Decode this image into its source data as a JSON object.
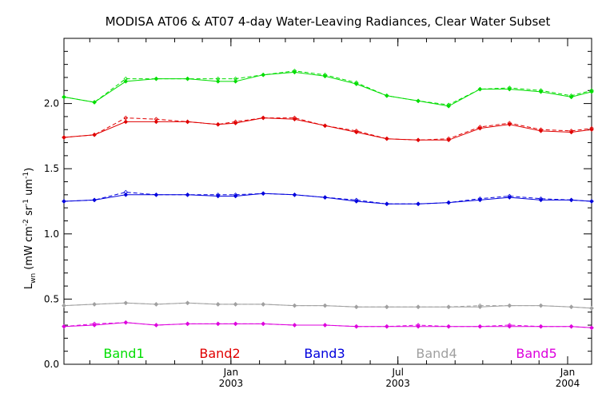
{
  "chart_data": {
    "type": "line",
    "title": "MODISA AT06 & AT07 4-day Water-Leaving Radiances, Clear Water Subset",
    "ylabel": {
      "main": "L",
      "sub": "wn",
      "units_prefix": " (mW cm",
      "exp1": "-2",
      "units_mid": " sr",
      "exp2": "-1",
      "units_mid2": " um",
      "exp3": "-1",
      "units_suffix": ")"
    },
    "ylim": [
      0.0,
      2.5
    ],
    "xlim": [
      "2002-07-04",
      "2004-01-27"
    ],
    "y_ticks": [
      "0.0",
      "0.5",
      "1.0",
      "1.5",
      "2.0"
    ],
    "y_tick_values": [
      0.0,
      0.5,
      1.0,
      1.5,
      2.0
    ],
    "x_ticks": [
      {
        "date": "2003-01-01",
        "month": "Jan",
        "year": "2003"
      },
      {
        "date": "2003-07-01",
        "month": "Jul",
        "year": "2003"
      },
      {
        "date": "2004-01-01",
        "month": "Jan",
        "year": "2004"
      }
    ],
    "grid": false,
    "legend_position": "bottom",
    "x": [
      "2002-07-04",
      "2002-08-06",
      "2002-09-09",
      "2002-10-12",
      "2002-11-15",
      "2002-12-18",
      "2003-01-06",
      "2003-02-05",
      "2003-03-11",
      "2003-04-13",
      "2003-05-17",
      "2003-06-19",
      "2003-07-23",
      "2003-08-25",
      "2003-09-28",
      "2003-10-30",
      "2003-12-03",
      "2004-01-05",
      "2004-01-27"
    ],
    "series": [
      {
        "name": "Band1",
        "color": "#00dd00",
        "solid": [
          2.05,
          2.01,
          2.17,
          2.19,
          2.19,
          2.17,
          2.17,
          2.22,
          2.24,
          2.21,
          2.15,
          2.06,
          2.02,
          1.98,
          2.11,
          2.11,
          2.09,
          2.05,
          2.09
        ],
        "dashed": [
          2.05,
          2.01,
          2.19,
          2.19,
          2.19,
          2.19,
          2.19,
          2.22,
          2.25,
          2.22,
          2.16,
          2.06,
          2.02,
          1.99,
          2.11,
          2.12,
          2.1,
          2.06,
          2.1
        ]
      },
      {
        "name": "Band2",
        "color": "#e00000",
        "solid": [
          1.74,
          1.76,
          1.86,
          1.86,
          1.86,
          1.84,
          1.85,
          1.89,
          1.88,
          1.83,
          1.78,
          1.73,
          1.72,
          1.72,
          1.81,
          1.84,
          1.79,
          1.78,
          1.8
        ],
        "dashed": [
          1.74,
          1.76,
          1.89,
          1.88,
          1.86,
          1.84,
          1.86,
          1.89,
          1.89,
          1.83,
          1.79,
          1.73,
          1.72,
          1.73,
          1.82,
          1.85,
          1.8,
          1.79,
          1.81
        ]
      },
      {
        "name": "Band3",
        "color": "#0000dd",
        "solid": [
          1.25,
          1.26,
          1.3,
          1.3,
          1.3,
          1.29,
          1.29,
          1.31,
          1.3,
          1.28,
          1.25,
          1.23,
          1.23,
          1.24,
          1.26,
          1.28,
          1.26,
          1.26,
          1.25
        ],
        "dashed": [
          1.25,
          1.26,
          1.32,
          1.3,
          1.3,
          1.3,
          1.3,
          1.31,
          1.3,
          1.28,
          1.26,
          1.23,
          1.23,
          1.24,
          1.27,
          1.29,
          1.27,
          1.26,
          1.25
        ]
      },
      {
        "name": "Band4",
        "color": "#a0a0a0",
        "solid": [
          0.45,
          0.46,
          0.47,
          0.46,
          0.47,
          0.46,
          0.46,
          0.46,
          0.45,
          0.45,
          0.44,
          0.44,
          0.44,
          0.44,
          0.44,
          0.45,
          0.45,
          0.44,
          0.43
        ],
        "dashed": [
          0.45,
          0.46,
          0.47,
          0.46,
          0.47,
          0.46,
          0.46,
          0.46,
          0.45,
          0.45,
          0.44,
          0.44,
          0.44,
          0.44,
          0.45,
          0.45,
          0.45,
          0.44,
          0.43
        ]
      },
      {
        "name": "Band5",
        "color": "#dd00dd",
        "solid": [
          0.29,
          0.3,
          0.32,
          0.3,
          0.31,
          0.31,
          0.31,
          0.31,
          0.3,
          0.3,
          0.29,
          0.29,
          0.29,
          0.29,
          0.29,
          0.29,
          0.29,
          0.29,
          0.28
        ],
        "dashed": [
          0.29,
          0.31,
          0.32,
          0.3,
          0.31,
          0.31,
          0.31,
          0.31,
          0.3,
          0.3,
          0.29,
          0.29,
          0.3,
          0.29,
          0.29,
          0.3,
          0.29,
          0.29,
          0.28
        ]
      }
    ]
  }
}
